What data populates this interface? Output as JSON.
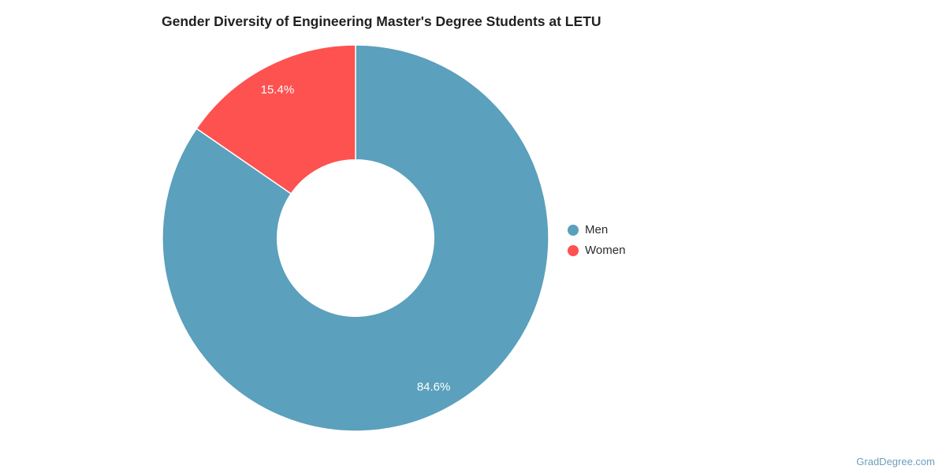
{
  "title": "Gender Diversity of Engineering Master's Degree Students at LETU",
  "watermark": "GradDegree.com",
  "chart_data": {
    "type": "pie",
    "subtype": "donut",
    "title": "Gender Diversity of Engineering Master's Degree Students at LETU",
    "categories": [
      "Men",
      "Women"
    ],
    "values": [
      84.6,
      15.4
    ],
    "slice_labels": [
      "84.6%",
      "15.4%"
    ],
    "colors": [
      "#5BA0BC",
      "#FD5250"
    ],
    "label_color": "#FFFFFF",
    "start_angle_deg": 0,
    "direction": "clockwise",
    "inner_radius_ratio": 0.405,
    "label_radius_ratio": 0.87,
    "legend_position": "right",
    "background": "#FFFFFF"
  },
  "legend": {
    "items": [
      {
        "label": "Men",
        "color": "#5BA0BC"
      },
      {
        "label": "Women",
        "color": "#FD5250"
      }
    ]
  }
}
